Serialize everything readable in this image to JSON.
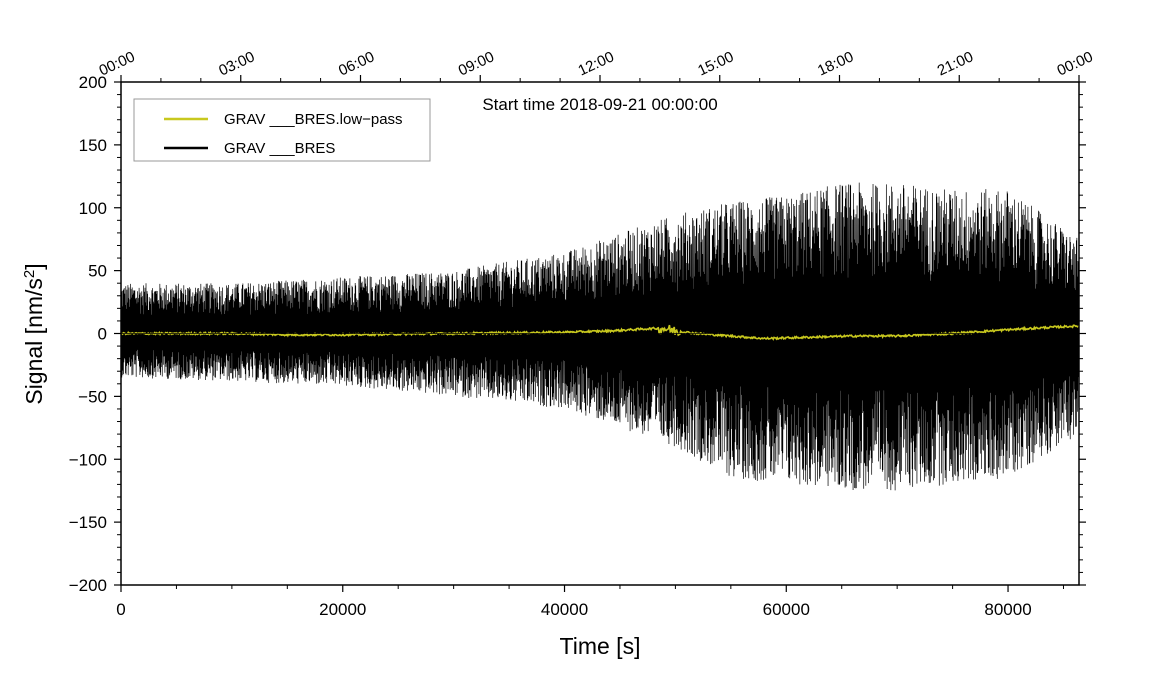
{
  "chart_data": {
    "type": "line",
    "annotation": "Start time 2018-09-21 00:00:00",
    "xlabel": "Time [s]",
    "ylabel": "Signal [nm/s",
    "ylabel_sup": "2",
    "ylabel_close": "]",
    "xlim": [
      0,
      86400
    ],
    "ylim": [
      -200,
      200
    ],
    "x_ticks": [
      0,
      20000,
      40000,
      60000,
      80000
    ],
    "x_tick_labels": [
      "0",
      "20000",
      "40000",
      "60000",
      "80000"
    ],
    "y_ticks": [
      -200,
      -150,
      -100,
      -50,
      0,
      50,
      100,
      150,
      200
    ],
    "y_tick_labels": [
      "−200",
      "−150",
      "−100",
      "−50",
      "0",
      "50",
      "100",
      "150",
      "200"
    ],
    "top_ticks": [
      0,
      10800,
      21600,
      32400,
      43200,
      54000,
      64800,
      75600,
      86400
    ],
    "top_tick_labels": [
      "00:00",
      "03:00",
      "06:00",
      "09:00",
      "12:00",
      "15:00",
      "18:00",
      "21:00",
      "00:00"
    ],
    "legend": {
      "placement": "top-left",
      "entries": [
        "GRAV ___BRES.low−pass",
        "GRAV ___BRES"
      ]
    },
    "series": [
      {
        "name": "GRAV ___BRES",
        "color": "#000000",
        "envelope": {
          "x": [
            0,
            10000,
            20000,
            30000,
            40000,
            45000,
            50000,
            55000,
            60000,
            65000,
            70000,
            75000,
            80000,
            86400
          ],
          "upper": [
            40,
            40,
            45,
            50,
            65,
            80,
            95,
            105,
            110,
            120,
            120,
            115,
            115,
            75
          ],
          "lower": [
            -35,
            -38,
            -42,
            -50,
            -60,
            -75,
            -90,
            -115,
            -120,
            -125,
            -125,
            -120,
            -115,
            -80
          ]
        }
      },
      {
        "name": "GRAV ___BRES.low−pass",
        "color": "#c8c81e",
        "x": [
          0,
          10000,
          15000,
          20000,
          30000,
          40000,
          44000,
          46000,
          48000,
          49000,
          50000,
          52000,
          55000,
          58000,
          62000,
          66000,
          70000,
          75000,
          80000,
          84000,
          86400
        ],
        "y": [
          0,
          0,
          -1,
          -1,
          0,
          1,
          2,
          3,
          4,
          4,
          2,
          0,
          -2,
          -4,
          -3,
          -2,
          -2,
          0,
          3,
          5,
          6
        ]
      }
    ]
  }
}
